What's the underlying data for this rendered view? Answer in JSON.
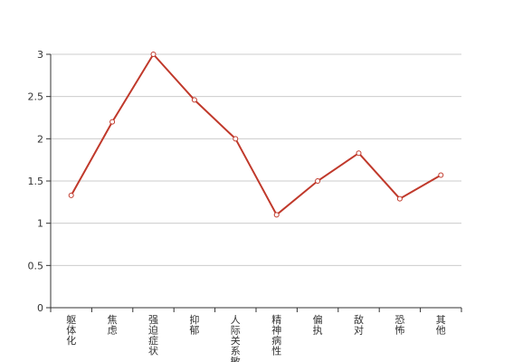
{
  "chart_data": {
    "type": "line",
    "categories": [
      "躯体化",
      "焦虑",
      "强迫症状",
      "抑郁",
      "人际关系敏感",
      "精神病性",
      "偏执",
      "敌对",
      "恐怖",
      "其他"
    ],
    "series": [
      {
        "values": [
          1.33,
          2.2,
          3.0,
          2.46,
          2.0,
          1.1,
          1.5,
          1.83,
          1.29,
          1.57
        ],
        "color": "#c0392b"
      }
    ],
    "ylim": [
      0,
      3
    ],
    "yticks": [
      0,
      0.5,
      1,
      1.5,
      2,
      2.5,
      3
    ],
    "grid": true,
    "title": "",
    "xlabel": "",
    "ylabel": ""
  }
}
